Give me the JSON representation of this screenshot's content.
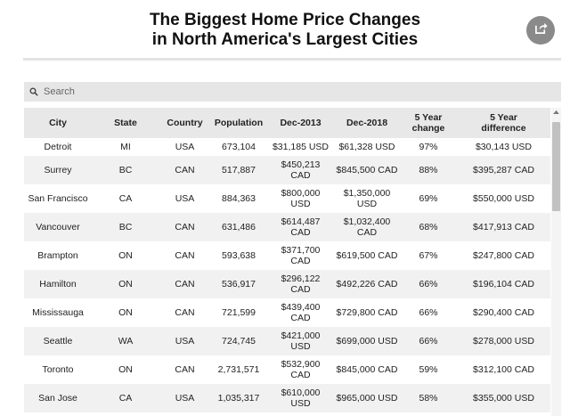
{
  "title": {
    "line1": "The Biggest Home Price Changes",
    "line2": "in North America's Largest Cities"
  },
  "search": {
    "placeholder": "Search"
  },
  "table": {
    "columns": [
      "City",
      "State",
      "Country",
      "Population",
      "Dec-2013",
      "Dec-2018",
      "5 Year\nchange",
      "5 Year\ndifference"
    ],
    "rows": [
      [
        "Detroit",
        "MI",
        "USA",
        "673,104",
        "$31,185 USD",
        "$61,328 USD",
        "97%",
        "$30,143 USD"
      ],
      [
        "Surrey",
        "BC",
        "CAN",
        "517,887",
        "$450,213\nCAD",
        "$845,500 CAD",
        "88%",
        "$395,287 CAD"
      ],
      [
        "San Francisco",
        "CA",
        "USA",
        "884,363",
        "$800,000\nUSD",
        "$1,350,000\nUSD",
        "69%",
        "$550,000 USD"
      ],
      [
        "Vancouver",
        "BC",
        "CAN",
        "631,486",
        "$614,487\nCAD",
        "$1,032,400\nCAD",
        "68%",
        "$417,913 CAD"
      ],
      [
        "Brampton",
        "ON",
        "CAN",
        "593,638",
        "$371,700\nCAD",
        "$619,500 CAD",
        "67%",
        "$247,800 CAD"
      ],
      [
        "Hamilton",
        "ON",
        "CAN",
        "536,917",
        "$296,122\nCAD",
        "$492,226 CAD",
        "66%",
        "$196,104 CAD"
      ],
      [
        "Mississauga",
        "ON",
        "CAN",
        "721,599",
        "$439,400\nCAD",
        "$729,800 CAD",
        "66%",
        "$290,400 CAD"
      ],
      [
        "Seattle",
        "WA",
        "USA",
        "724,745",
        "$421,000\nUSD",
        "$699,000 USD",
        "66%",
        "$278,000 USD"
      ],
      [
        "Toronto",
        "ON",
        "CAN",
        "2,731,571",
        "$532,900\nCAD",
        "$845,000 CAD",
        "59%",
        "$312,100 CAD"
      ],
      [
        "San Jose",
        "CA",
        "USA",
        "1,035,317",
        "$610,000\nUSD",
        "$965,000 USD",
        "58%",
        "$355,000 USD"
      ]
    ]
  }
}
